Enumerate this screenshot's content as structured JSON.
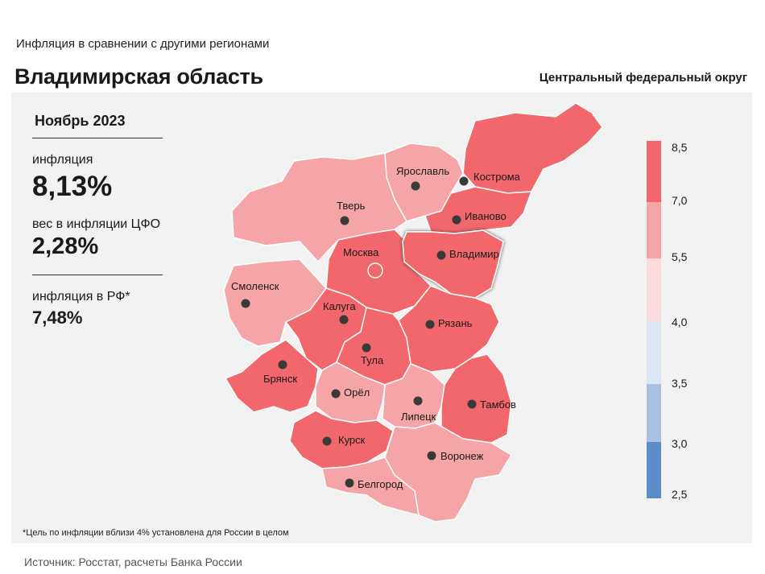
{
  "header": {
    "subtitle": "Инфляция  в сравнении  с другими  регионами",
    "title": "Владимирская область",
    "district": "Центральный федеральный округ"
  },
  "info": {
    "period": "Ноябрь 2023",
    "inflation_label": "инфляция",
    "inflation_value": "8,13%",
    "weight_label": "вес в инфляции  ЦФО",
    "weight_value": "2,28%",
    "rf_label": "инфляция  в РФ*",
    "rf_value": "7,48%"
  },
  "footnote": "*Цель по инфляции вблизи 4% установлена для России в целом",
  "source": "Источник: Росстат, расчеты Банка России",
  "colors": {
    "high": "#f2676b",
    "mid": "#f5a4a7",
    "low": "#fbdbdd",
    "blue1": "#dde7f4",
    "blue2": "#a9c1e2",
    "blue3": "#5b8bc8"
  },
  "legend": {
    "ticks": [
      "8,5",
      "7,0",
      "5,5",
      "4,0",
      "3,5",
      "3,0",
      "2,5"
    ]
  },
  "regions": {
    "yaroslavl": "Ярославль",
    "kostroma": "Кострома",
    "tver": "Тверь",
    "ivanovo": "Иваново",
    "moscow": "Москва",
    "vladimir": "Владимир",
    "smolensk": "Смоленск",
    "kaluga": "Калуга",
    "ryazan": "Рязань",
    "tula": "Тула",
    "bryansk": "Брянск",
    "orel": "Орёл",
    "lipetsk": "Липецк",
    "tambov": "Тамбов",
    "kursk": "Курск",
    "voronezh": "Воронеж",
    "belgorod": "Белгород"
  }
}
